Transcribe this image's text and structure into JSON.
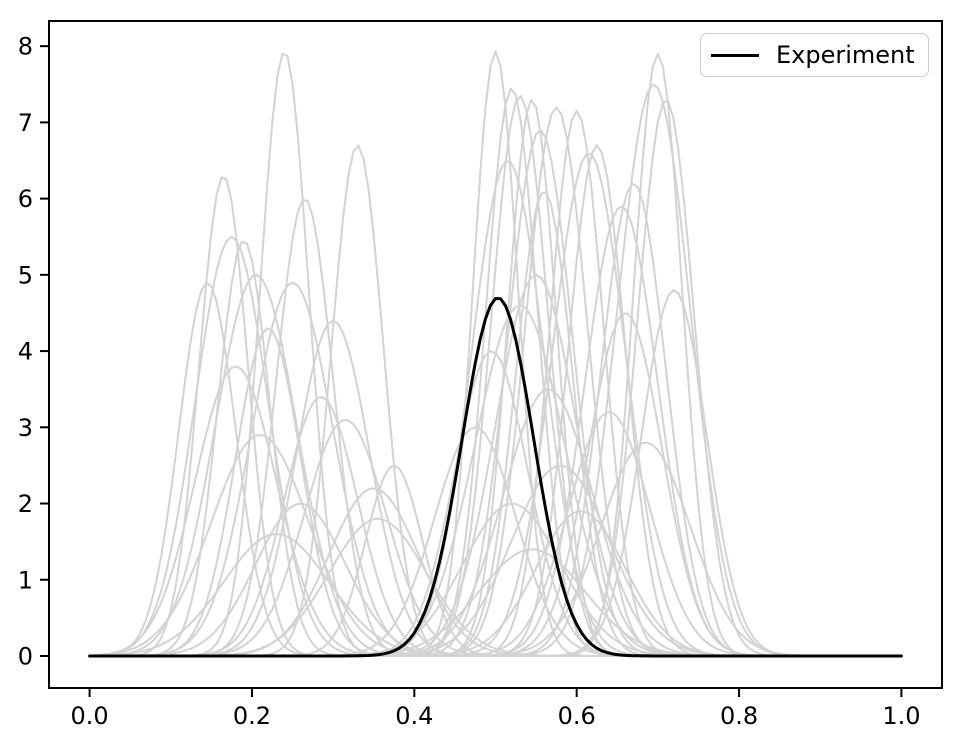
{
  "chart_data": {
    "type": "line",
    "title": "",
    "xlabel": "",
    "ylabel": "",
    "x_ticks": [
      0.0,
      0.2,
      0.4,
      0.6,
      0.8,
      1.0
    ],
    "x_tick_labels": [
      "0.0",
      "0.2",
      "0.4",
      "0.6",
      "0.8",
      "1.0"
    ],
    "y_ticks": [
      0,
      1,
      2,
      3,
      4,
      5,
      6,
      7,
      8
    ],
    "y_tick_labels": [
      "0",
      "1",
      "2",
      "3",
      "4",
      "5",
      "6",
      "7",
      "8"
    ],
    "xlim": [
      -0.05,
      1.05
    ],
    "ylim": [
      -0.42,
      8.33
    ],
    "grid": false,
    "legend": {
      "position": "upper right",
      "entries": [
        {
          "label": "Experiment",
          "color": "#000000"
        }
      ]
    },
    "colors": {
      "samples": "#d3d3d3",
      "experiment": "#000000",
      "spine": "#000000",
      "background": "#ffffff"
    },
    "curve_model": "gaussian: y = amplitude * exp(-(x - mean)^2 / (2 * std^2)), plotted for x in [0, 1]",
    "experiment_curve": {
      "mean": 0.503,
      "std": 0.044,
      "amplitude": 4.7
    },
    "sample_curves": [
      {
        "mean": 0.145,
        "std": 0.035,
        "amplitude": 4.9
      },
      {
        "mean": 0.165,
        "std": 0.03,
        "amplitude": 6.3
      },
      {
        "mean": 0.175,
        "std": 0.045,
        "amplitude": 5.5
      },
      {
        "mean": 0.18,
        "std": 0.05,
        "amplitude": 3.8
      },
      {
        "mean": 0.19,
        "std": 0.032,
        "amplitude": 5.45
      },
      {
        "mean": 0.205,
        "std": 0.05,
        "amplitude": 5.0
      },
      {
        "mean": 0.21,
        "std": 0.06,
        "amplitude": 2.9
      },
      {
        "mean": 0.22,
        "std": 0.04,
        "amplitude": 4.3
      },
      {
        "mean": 0.23,
        "std": 0.065,
        "amplitude": 1.6
      },
      {
        "mean": 0.24,
        "std": 0.03,
        "amplitude": 7.93
      },
      {
        "mean": 0.25,
        "std": 0.05,
        "amplitude": 4.9
      },
      {
        "mean": 0.26,
        "std": 0.055,
        "amplitude": 2.0
      },
      {
        "mean": 0.265,
        "std": 0.035,
        "amplitude": 6.0
      },
      {
        "mean": 0.285,
        "std": 0.045,
        "amplitude": 3.4
      },
      {
        "mean": 0.3,
        "std": 0.045,
        "amplitude": 4.4
      },
      {
        "mean": 0.315,
        "std": 0.05,
        "amplitude": 3.1
      },
      {
        "mean": 0.33,
        "std": 0.032,
        "amplitude": 6.7
      },
      {
        "mean": 0.35,
        "std": 0.055,
        "amplitude": 2.2
      },
      {
        "mean": 0.355,
        "std": 0.06,
        "amplitude": 1.8
      },
      {
        "mean": 0.375,
        "std": 0.035,
        "amplitude": 2.5
      },
      {
        "mean": 0.475,
        "std": 0.05,
        "amplitude": 3.0
      },
      {
        "mean": 0.495,
        "std": 0.045,
        "amplitude": 4.0
      },
      {
        "mean": 0.5,
        "std": 0.028,
        "amplitude": 7.93
      },
      {
        "mean": 0.515,
        "std": 0.045,
        "amplitude": 6.5
      },
      {
        "mean": 0.52,
        "std": 0.032,
        "amplitude": 7.45
      },
      {
        "mean": 0.52,
        "std": 0.06,
        "amplitude": 2.0
      },
      {
        "mean": 0.53,
        "std": 0.035,
        "amplitude": 7.35
      },
      {
        "mean": 0.53,
        "std": 0.055,
        "amplitude": 4.6
      },
      {
        "mean": 0.545,
        "std": 0.03,
        "amplitude": 7.3
      },
      {
        "mean": 0.545,
        "std": 0.065,
        "amplitude": 1.4
      },
      {
        "mean": 0.55,
        "std": 0.05,
        "amplitude": 5.0
      },
      {
        "mean": 0.555,
        "std": 0.04,
        "amplitude": 6.9
      },
      {
        "mean": 0.56,
        "std": 0.035,
        "amplitude": 6.1
      },
      {
        "mean": 0.565,
        "std": 0.055,
        "amplitude": 3.5
      },
      {
        "mean": 0.575,
        "std": 0.038,
        "amplitude": 7.2
      },
      {
        "mean": 0.58,
        "std": 0.06,
        "amplitude": 2.5
      },
      {
        "mean": 0.6,
        "std": 0.033,
        "amplitude": 7.15
      },
      {
        "mean": 0.605,
        "std": 0.055,
        "amplitude": 1.9
      },
      {
        "mean": 0.615,
        "std": 0.045,
        "amplitude": 6.6
      },
      {
        "mean": 0.625,
        "std": 0.035,
        "amplitude": 6.7
      },
      {
        "mean": 0.64,
        "std": 0.05,
        "amplitude": 3.2
      },
      {
        "mean": 0.655,
        "std": 0.045,
        "amplitude": 5.9
      },
      {
        "mean": 0.66,
        "std": 0.045,
        "amplitude": 4.5
      },
      {
        "mean": 0.67,
        "std": 0.04,
        "amplitude": 6.2
      },
      {
        "mean": 0.685,
        "std": 0.055,
        "amplitude": 2.8
      },
      {
        "mean": 0.695,
        "std": 0.045,
        "amplitude": 7.5
      },
      {
        "mean": 0.7,
        "std": 0.03,
        "amplitude": 7.9
      },
      {
        "mean": 0.71,
        "std": 0.035,
        "amplitude": 7.3
      },
      {
        "mean": 0.72,
        "std": 0.04,
        "amplitude": 4.8
      }
    ]
  }
}
